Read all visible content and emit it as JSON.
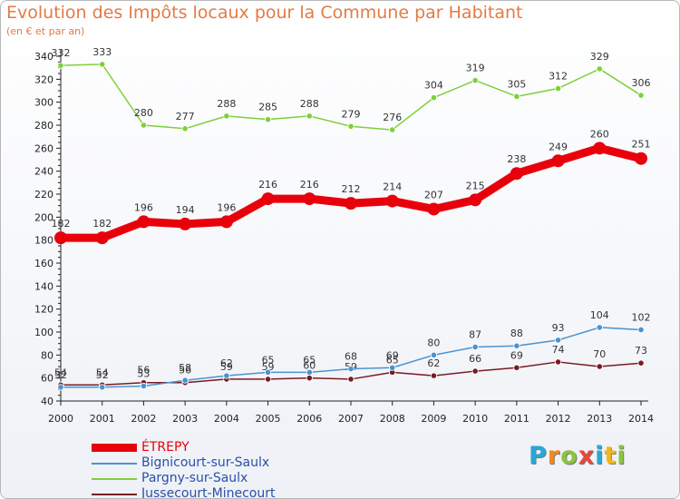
{
  "title": "Evolution des Impôts locaux pour la Commune par Habitant",
  "subtitle": "(en € et par an)",
  "logo": {
    "letters": [
      "P",
      "r",
      "o",
      "x",
      "i",
      "t",
      "i"
    ],
    "colors": [
      "#2aa7d8",
      "#f08a1e",
      "#8bc53f",
      "#e8463c",
      "#2aa7d8",
      "#f2b61c",
      "#8bc53f"
    ]
  },
  "chart_data": {
    "type": "line",
    "title": "Evolution des Impôts locaux pour la Commune par Habitant",
    "subtitle": "(en € et par an)",
    "xlabel": "",
    "ylabel": "",
    "x": [
      "2000",
      "2001",
      "2002",
      "2003",
      "2004",
      "2005",
      "2006",
      "2007",
      "2008",
      "2009",
      "2010",
      "2011",
      "2012",
      "2013",
      "2014"
    ],
    "ylim": [
      40,
      340
    ],
    "yticks": [
      40,
      60,
      80,
      100,
      120,
      140,
      160,
      180,
      200,
      220,
      240,
      260,
      280,
      300,
      320,
      340
    ],
    "grid": false,
    "legend_position": "bottom-left",
    "series": [
      {
        "name": "ÉTREPY",
        "color": "#e8000b",
        "values": [
          182,
          182,
          196,
          194,
          196,
          216,
          216,
          212,
          214,
          207,
          215,
          238,
          249,
          260,
          251
        ]
      },
      {
        "name": "Bignicourt-sur-Saulx",
        "color": "#4a93d1",
        "values": [
          52,
          52,
          53,
          58,
          62,
          65,
          65,
          68,
          69,
          80,
          87,
          88,
          93,
          104,
          102
        ]
      },
      {
        "name": "Pargny-sur-Saulx",
        "color": "#7ed03a",
        "values": [
          332,
          333,
          280,
          277,
          288,
          285,
          288,
          279,
          276,
          304,
          319,
          305,
          312,
          329,
          306
        ]
      },
      {
        "name": "Jussecourt-Minecourt",
        "color": "#7a1a22",
        "values": [
          54,
          54,
          56,
          56,
          59,
          59,
          60,
          59,
          65,
          62,
          66,
          69,
          74,
          70,
          73
        ]
      }
    ]
  }
}
